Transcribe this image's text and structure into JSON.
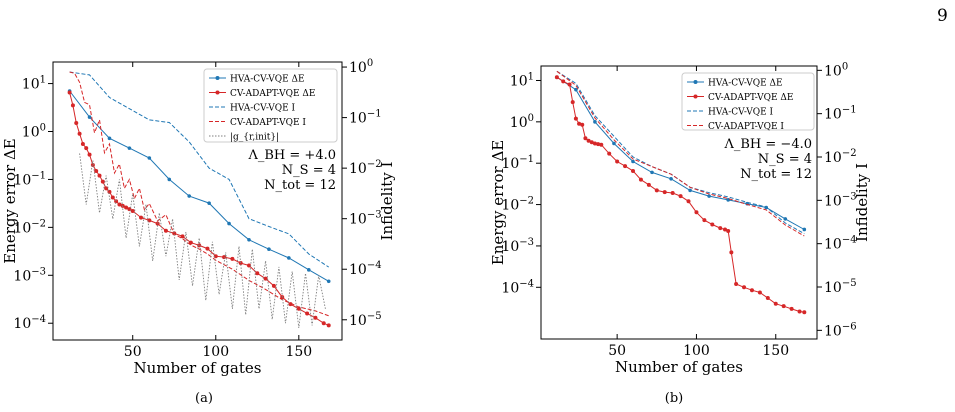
{
  "page_number": "9",
  "chart_data": [
    {
      "type": "line",
      "panel_label": "(a)",
      "xlabel": "Number of gates",
      "ylabel": "Energy error ΔE",
      "y2label": "Infidelity I",
      "xlim": [
        2,
        176
      ],
      "ylim_log10": [
        -4.35,
        1.45
      ],
      "y2lim_log10": [
        -5.4,
        0.1
      ],
      "y_scale": "log",
      "y2_scale": "log",
      "xticks": [
        50,
        100,
        150
      ],
      "yticks_exp": [
        "1",
        "0",
        "-1",
        "-2",
        "-3",
        "-4"
      ],
      "y2ticks_exp": [
        "0",
        "-1",
        "-2",
        "-3",
        "-4",
        "-5"
      ],
      "legend_position": "top-right",
      "annotation_lines": [
        "Λ_BH = +4.0",
        "N_S = 4",
        "N_tot = 12"
      ],
      "series": [
        {
          "name": "HVA-CV-VQE ΔE",
          "axis": "left",
          "style": "solid-marker",
          "color": "#1f77b4",
          "x": [
            12,
            24,
            36,
            48,
            60,
            72,
            84,
            96,
            108,
            120,
            132,
            144,
            156,
            168
          ],
          "y": [
            7.0,
            2.0,
            0.72,
            0.45,
            0.28,
            0.1,
            0.045,
            0.032,
            0.012,
            0.0055,
            0.0035,
            0.0023,
            0.0013,
            0.00075
          ]
        },
        {
          "name": "CV-ADAPT-VQE ΔE",
          "axis": "left",
          "style": "solid-dense-marker",
          "color": "#d62728",
          "x": [
            12,
            14,
            16,
            18,
            20,
            22,
            24,
            26,
            28,
            30,
            32,
            34,
            36,
            38,
            40,
            42,
            44,
            46,
            48,
            50,
            55,
            60,
            65,
            70,
            75,
            80,
            85,
            90,
            95,
            100,
            105,
            110,
            115,
            120,
            125,
            130,
            135,
            140,
            145,
            150,
            155,
            160,
            165,
            168
          ],
          "y": [
            6.5,
            3.5,
            1.5,
            0.9,
            0.55,
            0.45,
            0.33,
            0.2,
            0.15,
            0.12,
            0.09,
            0.065,
            0.055,
            0.042,
            0.035,
            0.03,
            0.028,
            0.026,
            0.024,
            0.022,
            0.016,
            0.014,
            0.012,
            0.0085,
            0.0075,
            0.0065,
            0.0048,
            0.0042,
            0.0036,
            0.0025,
            0.0024,
            0.0022,
            0.0018,
            0.0016,
            0.0011,
            0.00085,
            0.0006,
            0.00035,
            0.00025,
            0.0002,
            0.00016,
            0.00013,
            0.0001,
            9e-05
          ]
        },
        {
          "name": "HVA-CV-VQE I",
          "axis": "right",
          "style": "dashed",
          "color": "#1f77b4",
          "x": [
            12,
            24,
            36,
            48,
            60,
            72,
            84,
            96,
            108,
            120,
            132,
            144,
            156,
            168
          ],
          "y": [
            0.8,
            0.7,
            0.25,
            0.15,
            0.09,
            0.08,
            0.033,
            0.01,
            0.006,
            0.001,
            0.0007,
            0.0005,
            0.0002,
            0.00011
          ]
        },
        {
          "name": "CV-ADAPT-VQE I",
          "axis": "right",
          "style": "dashed",
          "color": "#d62728",
          "x": [
            12,
            15,
            18,
            21,
            24,
            27,
            30,
            33,
            36,
            39,
            42,
            45,
            48,
            51,
            54,
            57,
            60,
            65,
            70,
            75,
            80,
            85,
            90,
            95,
            100,
            110,
            120,
            130,
            140,
            150,
            160,
            168
          ],
          "y": [
            0.8,
            0.75,
            0.5,
            0.2,
            0.18,
            0.05,
            0.09,
            0.02,
            0.03,
            0.008,
            0.012,
            0.004,
            0.006,
            0.0025,
            0.004,
            0.0015,
            0.002,
            0.0009,
            0.0012,
            0.0005,
            0.0004,
            0.0003,
            0.00025,
            0.0002,
            0.00015,
            0.0001,
            6e-05,
            4e-05,
            2.5e-05,
            1.8e-05,
            1.5e-05,
            1.2e-05
          ]
        },
        {
          "name": "|g_{r,init}|",
          "axis": "left",
          "style": "dotted",
          "color": "#7f7f7f",
          "x": [
            18,
            22,
            26,
            30,
            34,
            38,
            42,
            46,
            50,
            54,
            58,
            62,
            66,
            70,
            74,
            78,
            82,
            86,
            90,
            94,
            98,
            102,
            106,
            110,
            114,
            118,
            122,
            126,
            130,
            134,
            138,
            142,
            146,
            150,
            154,
            158,
            162,
            166
          ],
          "y": [
            0.35,
            0.03,
            0.25,
            0.02,
            0.12,
            0.015,
            0.1,
            0.006,
            0.05,
            0.004,
            0.03,
            0.002,
            0.02,
            0.0025,
            0.015,
            0.0008,
            0.008,
            0.0006,
            0.006,
            0.0003,
            0.005,
            0.0004,
            0.003,
            0.0002,
            0.004,
            0.00015,
            0.0035,
            0.0002,
            0.002,
            0.00012,
            0.0015,
            0.0001,
            0.0012,
            8e-05,
            0.0011,
            9e-05,
            0.001,
            0.0002
          ]
        }
      ]
    },
    {
      "type": "line",
      "panel_label": "(b)",
      "xlabel": "Number of gates",
      "ylabel": "Energy error ΔE",
      "y2label": "Infidelity I",
      "xlim": [
        2,
        176
      ],
      "ylim_log10": [
        -5.25,
        1.35
      ],
      "y2lim_log10": [
        -6.2,
        0.1
      ],
      "y_scale": "log",
      "y2_scale": "log",
      "xticks": [
        50,
        100,
        150
      ],
      "yticks_exp": [
        "1",
        "0",
        "-1",
        "-2",
        "-3",
        "-4"
      ],
      "y2ticks_exp": [
        "0",
        "-1",
        "-2",
        "-3",
        "-4",
        "-5",
        "-6"
      ],
      "legend_position": "top-right",
      "annotation_lines": [
        "Λ_BH = −4.0",
        "N_S = 4",
        "N_tot = 12"
      ],
      "series": [
        {
          "name": "HVA-CV-VQE ΔE",
          "axis": "left",
          "style": "solid-marker",
          "color": "#1f77b4",
          "x": [
            12,
            24,
            36,
            48,
            60,
            72,
            84,
            96,
            108,
            120,
            132,
            144,
            156,
            168
          ],
          "y": [
            12,
            6.0,
            1.0,
            0.3,
            0.11,
            0.06,
            0.042,
            0.022,
            0.016,
            0.013,
            0.0105,
            0.0085,
            0.0045,
            0.0025
          ]
        },
        {
          "name": "CV-ADAPT-VQE ΔE",
          "axis": "left",
          "style": "solid-dense-marker",
          "color": "#d62728",
          "x": [
            12,
            16,
            20,
            22,
            24,
            26,
            28,
            30,
            32,
            34,
            36,
            38,
            40,
            45,
            50,
            55,
            60,
            65,
            70,
            75,
            80,
            85,
            90,
            95,
            100,
            105,
            110,
            115,
            118,
            120,
            122,
            125,
            130,
            135,
            140,
            145,
            150,
            155,
            160,
            165,
            168
          ],
          "y": [
            12,
            9.5,
            8.0,
            3.0,
            1.2,
            0.9,
            0.85,
            0.4,
            0.35,
            0.32,
            0.3,
            0.29,
            0.28,
            0.17,
            0.11,
            0.085,
            0.065,
            0.04,
            0.03,
            0.022,
            0.02,
            0.019,
            0.016,
            0.012,
            0.0065,
            0.0042,
            0.0033,
            0.0027,
            0.0025,
            0.0023,
            0.0007,
            0.00012,
            0.0001,
            8.5e-05,
            7.5e-05,
            5.5e-05,
            4e-05,
            3.5e-05,
            3e-05,
            2.6e-05,
            2.5e-05
          ]
        },
        {
          "name": "HVA-CV-VQE I",
          "axis": "right",
          "style": "dashed",
          "color": "#1f77b4",
          "x": [
            12,
            24,
            36,
            48,
            60,
            72,
            84,
            96,
            108,
            120,
            132,
            144,
            156,
            168
          ],
          "y": [
            0.95,
            0.5,
            0.09,
            0.03,
            0.01,
            0.006,
            0.004,
            0.002,
            0.0015,
            0.0012,
            0.0009,
            0.0007,
            0.0003,
            0.00017
          ]
        },
        {
          "name": "CV-ADAPT-VQE I",
          "axis": "right",
          "style": "dashed",
          "color": "#d62728",
          "x": [
            12,
            24,
            36,
            48,
            60,
            72,
            84,
            96,
            108,
            120,
            132,
            144,
            156,
            168
          ],
          "y": [
            0.95,
            0.45,
            0.08,
            0.025,
            0.009,
            0.006,
            0.004,
            0.002,
            0.0014,
            0.0011,
            0.0008,
            0.0006,
            0.00027,
            0.00015
          ]
        }
      ]
    }
  ]
}
